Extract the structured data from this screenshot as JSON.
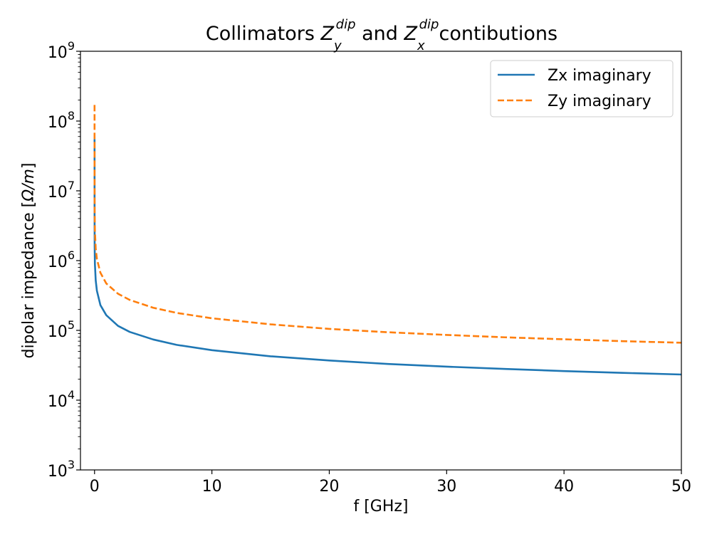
{
  "chart_data": {
    "type": "line",
    "title": {
      "prefix": "Collimators ",
      "z_symbol": "Z",
      "first_sub": "y",
      "first_sup": "dip",
      "connector": " and ",
      "second_sub": "x",
      "second_sup": "dip",
      "suffix": "contibutions"
    },
    "xlabel": "f [GHz]",
    "ylabel": {
      "text": "dipolar impedance [",
      "unit": "Ω/m",
      "close": "]"
    },
    "xlim": [
      -1.2,
      50
    ],
    "ylim": [
      1000,
      1000000000
    ],
    "yscale": "log",
    "grid": false,
    "legend_position": "top-right",
    "x_ticks": [
      {
        "value": 0,
        "label": "0"
      },
      {
        "value": 10,
        "label": "10"
      },
      {
        "value": 20,
        "label": "20"
      },
      {
        "value": 30,
        "label": "30"
      },
      {
        "value": 40,
        "label": "40"
      },
      {
        "value": 50,
        "label": "50"
      }
    ],
    "y_ticks": [
      {
        "value": 1000,
        "base": "10",
        "exp": "3"
      },
      {
        "value": 10000,
        "base": "10",
        "exp": "4"
      },
      {
        "value": 100000,
        "base": "10",
        "exp": "5"
      },
      {
        "value": 1000000,
        "base": "10",
        "exp": "6"
      },
      {
        "value": 10000000,
        "base": "10",
        "exp": "7"
      },
      {
        "value": 100000000,
        "base": "10",
        "exp": "8"
      },
      {
        "value": 1000000000,
        "base": "10",
        "exp": "9"
      }
    ],
    "series": [
      {
        "name": "Zx imaginary",
        "color": "#1f77b4",
        "dash": "solid",
        "x": [
          0.0003,
          0.001,
          0.003,
          0.01,
          0.03,
          0.1,
          0.2,
          0.5,
          1,
          2,
          3,
          5,
          7,
          10,
          15,
          20,
          25,
          30,
          35,
          40,
          45,
          50
        ],
        "y": [
          55000000,
          10000000,
          4500000,
          1600000,
          900000,
          520000,
          370000,
          230000,
          165000,
          116000,
          95000,
          74000,
          62000,
          52000,
          42500,
          37000,
          33000,
          30200,
          28000,
          26100,
          24600,
          23300
        ]
      },
      {
        "name": "Zy imaginary",
        "color": "#ff7f0e",
        "dash": "dashed",
        "x": [
          0.0003,
          0.001,
          0.003,
          0.01,
          0.03,
          0.1,
          0.2,
          0.5,
          1,
          2,
          3,
          5,
          7,
          10,
          15,
          20,
          25,
          30,
          35,
          40,
          45,
          50
        ],
        "y": [
          170000000,
          30000000,
          14000000,
          4800000,
          2700000,
          1500000,
          1060000,
          670000,
          470000,
          335000,
          273000,
          211000,
          178000,
          149000,
          122000,
          105000,
          94000,
          86000,
          79500,
          74500,
          70000,
          66500
        ]
      }
    ]
  }
}
